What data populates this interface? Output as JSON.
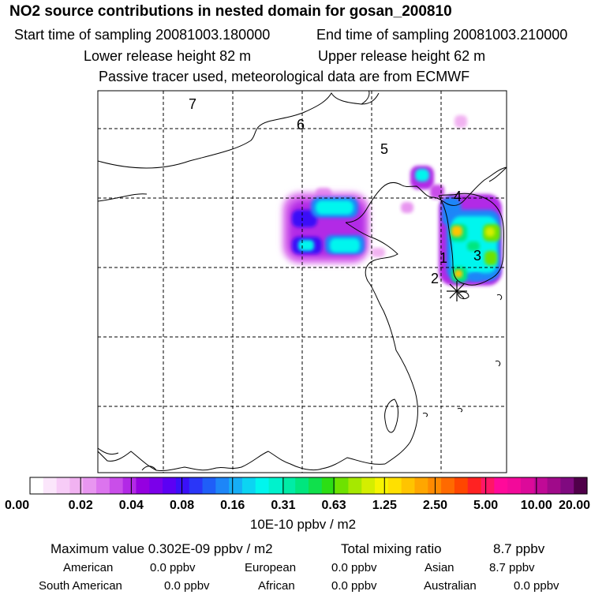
{
  "header": {
    "title": "NO2 source contributions in nested domain for gosan_200810",
    "start_label": "Start time of sampling 20081003.180000",
    "end_label": "End time of sampling 20081003.210000",
    "lower_label": "Lower release height   82 m",
    "upper_label": "Upper release height   62 m",
    "info_label": "Passive tracer used, meteorological data are from ECMWF"
  },
  "map": {
    "region_labels": [
      "1",
      "2",
      "3",
      "4",
      "5",
      "6",
      "7"
    ]
  },
  "colorbar": {
    "colors": [
      "#ffffff",
      "#fbe6fb",
      "#f7ccf7",
      "#f1b2f1",
      "#e896f0",
      "#dc74ee",
      "#c94ee9",
      "#b229e6",
      "#9500e0",
      "#7b00ea",
      "#5c00f4",
      "#3a10f8",
      "#2a36f8",
      "#1f5ef8",
      "#1d86f8",
      "#16aef6",
      "#0cd4f2",
      "#00f6ee",
      "#00f2cc",
      "#00eca6",
      "#00e67e",
      "#10e04c",
      "#2cde14",
      "#6ee200",
      "#a6e800",
      "#d4ee00",
      "#f6f400",
      "#ffe000",
      "#ffc400",
      "#ffa600",
      "#ff8a00",
      "#ff6a00",
      "#ff4600",
      "#ff2222",
      "#ff1666",
      "#ff0a9a",
      "#f20a9a",
      "#dc0a9a",
      "#c00a96",
      "#a00a8a",
      "#800a80",
      "#50004a"
    ],
    "tick_labels": [
      "0.00",
      "0.02",
      "0.04",
      "0.08",
      "0.16",
      "0.31",
      "0.63",
      "1.25",
      "2.50",
      "5.00",
      "10.00",
      "20.00"
    ],
    "unit": "10E-10 ppbv / m2"
  },
  "footer": {
    "max_label": "Maximum value  0.302E-09 ppbv / m2",
    "total_label": "Total mixing ratio",
    "total_value": "8.7 ppbv",
    "american_label": "American",
    "american_value": "0.0 ppbv",
    "european_label": "European",
    "european_value": "0.0 ppbv",
    "asian_label": "Asian",
    "asian_value": "8.7 ppbv",
    "south_american_label": "South American",
    "south_american_value": "0.0 ppbv",
    "african_label": "African",
    "african_value": "0.0 ppbv",
    "australian_label": "Australian",
    "australian_value": "0.0 ppbv"
  }
}
